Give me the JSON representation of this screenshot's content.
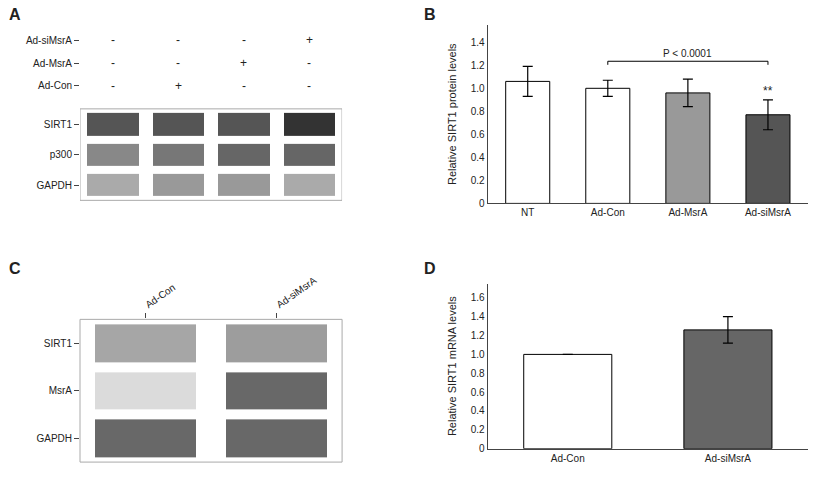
{
  "chart_data": [
    {
      "type": "blot",
      "title": "A",
      "categories": [
        null,
        null,
        null,
        null
      ],
      "annotations": [
        {
          "label": "Ad-siMsrA",
          "texts": [
            "-",
            "-",
            "-",
            "+"
          ]
        },
        {
          "label": "Ad-MsrA",
          "texts": [
            "-",
            "-",
            "+",
            "-"
          ]
        },
        {
          "label": "Ad-Con",
          "texts": [
            "-",
            "+",
            "-",
            "-"
          ]
        }
      ],
      "series": [
        {
          "name": "SIRT1",
          "colors": [
            "#555555",
            "#555555",
            "#555555",
            "#333333"
          ]
        },
        {
          "name": "p300",
          "colors": [
            "#888888",
            "#777777",
            "#666666",
            "#666666"
          ]
        },
        {
          "name": "GAPDH",
          "colors": [
            "#aaaaaa",
            "#999999",
            "#999999",
            "#aaaaaa"
          ]
        }
      ],
      "tick_labels": "y",
      "grid": false
    },
    {
      "type": "bar",
      "title": "B",
      "categories": [
        "NT",
        "Ad-Con",
        "Ad-MsrA",
        "Ad-siMsrA"
      ],
      "values": [
        1.06,
        1.0,
        0.96,
        0.77
      ],
      "errors": [
        0.13,
        0.07,
        0.12,
        0.13
      ],
      "colors": [
        "white",
        "white",
        "#999999",
        "#555555"
      ],
      "ylabel": "Relative SIRT1 protein levels",
      "ylim": [
        0,
        1.55
      ],
      "yticks": [
        0,
        0.2,
        0.4,
        0.6,
        0.8,
        {
          "value": 1.0,
          "label": "1.0"
        },
        1.2,
        1.4
      ],
      "grid": false,
      "annotations": [
        {
          "text": "**",
          "category": "Ad-siMsrA"
        },
        {
          "text": "P < 0.0001",
          "from": "Ad-Con",
          "to": "Ad-siMsrA"
        }
      ]
    },
    {
      "type": "heatmap",
      "title": "C",
      "categories": [
        "Ad-Con",
        "Ad-siMsrA"
      ],
      "series": [
        {
          "name": "SIRT1",
          "values": [
            0.5,
            0.55
          ]
        },
        {
          "name": "MsrA",
          "values": [
            0.2,
            0.85
          ]
        },
        {
          "name": "GAPDH",
          "values": [
            0.85,
            0.85
          ]
        }
      ],
      "zlim": [
        0,
        1
      ],
      "grid": false
    },
    {
      "type": "bar",
      "title": "D",
      "categories": [
        "Ad-Con",
        "Ad-siMsrA"
      ],
      "values": [
        1.0,
        1.26
      ],
      "errors": [
        0.0,
        0.14
      ],
      "colors": [
        "white",
        "#666666"
      ],
      "ylabel": "Relative SIRT1 mRNA levels",
      "ylim": [
        0,
        1.75
      ],
      "yticks": [
        0,
        0.2,
        0.4,
        0.6,
        0.8,
        {
          "value": 1.0,
          "label": "1.0"
        },
        1.2,
        1.4,
        1.6
      ],
      "grid": false
    }
  ]
}
